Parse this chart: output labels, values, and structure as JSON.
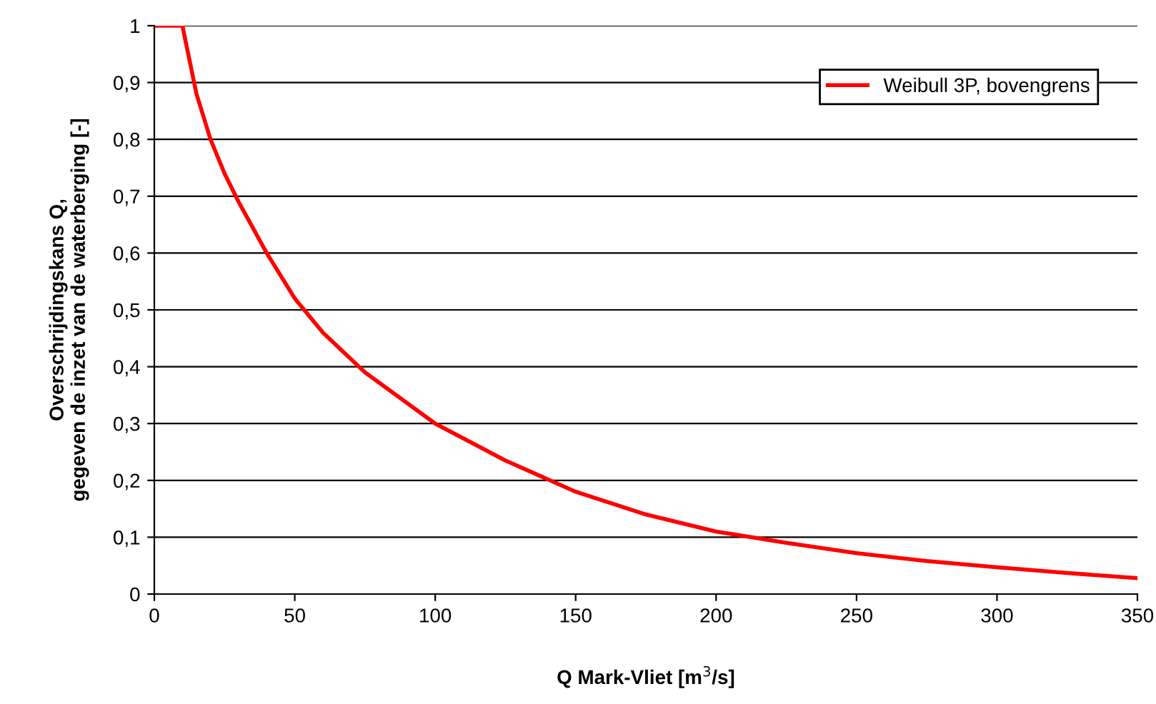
{
  "chart_data": {
    "type": "line",
    "xlabel": "Q Mark-Vliet [m$^{3}$/s]",
    "ylabel": "Overschrijdingskans Q,\ngegeven de inzet van de waterberging [-]",
    "x": [
      0,
      10,
      15,
      20,
      25,
      30,
      40,
      50,
      60,
      75,
      100,
      125,
      150,
      175,
      200,
      225,
      250,
      275,
      300,
      325,
      350
    ],
    "series": [
      {
        "name": "Weibull 3P, bovengrens",
        "color": "#ff0000",
        "values": [
          1,
          1,
          0.88,
          0.8,
          0.74,
          0.69,
          0.6,
          0.52,
          0.46,
          0.39,
          0.3,
          0.235,
          0.18,
          0.14,
          0.11,
          0.09,
          0.072,
          0.058,
          0.047,
          0.037,
          0.028
        ]
      }
    ],
    "xlim": [
      0,
      350
    ],
    "xticks": [
      0,
      50,
      100,
      150,
      200,
      250,
      300,
      350
    ],
    "ylim": [
      0,
      1
    ],
    "yticks": [
      0,
      {
        "value": 0.1,
        "label": "0,1"
      },
      {
        "value": 0.2,
        "label": "0,2"
      },
      {
        "value": 0.3,
        "label": "0,3"
      },
      {
        "value": 0.4,
        "label": "0,4"
      },
      {
        "value": 0.5,
        "label": "0,5"
      },
      {
        "value": 0.6,
        "label": "0,6"
      },
      {
        "value": 0.7,
        "label": "0,7"
      },
      {
        "value": 0.8,
        "label": "0,8"
      },
      {
        "value": 0.9,
        "label": "0,9"
      },
      1
    ],
    "grid": "y",
    "legend": "top right",
    "marker": "none",
    "line_style": "solid"
  }
}
